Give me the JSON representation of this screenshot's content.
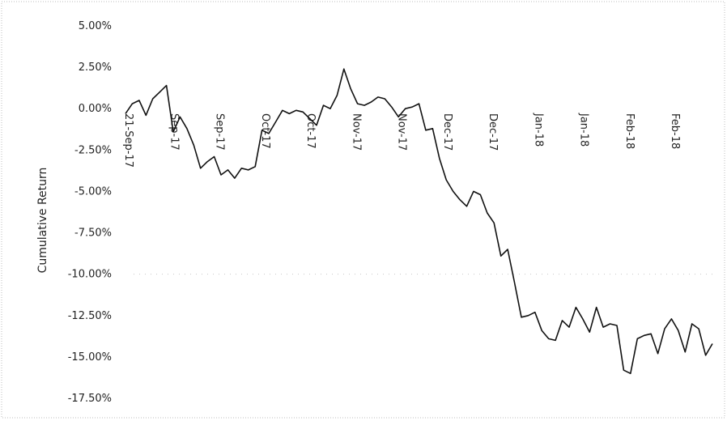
{
  "chart_data": {
    "type": "line",
    "title": "",
    "xlabel": "",
    "ylabel": "Cumulative Return",
    "ylim": [
      -17.5,
      5.0
    ],
    "y_ticks": [
      "5.00%",
      "2.50%",
      "0.00%",
      "-2.50%",
      "-5.00%",
      "-7.50%",
      "-10.00%",
      "-12.50%",
      "-15.00%",
      "-17.50%"
    ],
    "y_tick_values": [
      5.0,
      2.5,
      0.0,
      -2.5,
      -5.0,
      -7.5,
      -10.0,
      -12.5,
      -15.0,
      -17.5
    ],
    "x_tick_labels": [
      "21-Sep-17",
      "Sep-17",
      "Sep-17",
      "Oct-17",
      "Oct-17",
      "Nov-17",
      "Nov-17",
      "Dec-17",
      "Dec-17",
      "Jan-18",
      "Jan-18",
      "Feb-18",
      "Feb-18"
    ],
    "grid": "horizontal at -10.00%",
    "legend": "none",
    "series": [
      {
        "values": [
          -0.3,
          0.3,
          0.5,
          -0.4,
          0.6,
          1.0,
          1.4,
          -1.4,
          -0.5,
          -1.2,
          -2.2,
          -3.6,
          -3.2,
          -2.9,
          -4.0,
          -3.7,
          -4.2,
          -3.6,
          -3.7,
          -3.5,
          -1.3,
          -1.5,
          -0.8,
          -0.1,
          -0.3,
          -0.1,
          -0.2,
          -0.6,
          -1.0,
          0.2,
          0.0,
          0.8,
          2.4,
          1.2,
          0.3,
          0.2,
          0.4,
          0.7,
          0.6,
          0.1,
          -0.5,
          0.0,
          0.1,
          0.3,
          -1.3,
          -1.2,
          -3.0,
          -4.3,
          -5.0,
          -5.5,
          -5.9,
          -5.0,
          -5.2,
          -6.3,
          -6.9,
          -8.9,
          -8.5,
          -10.5,
          -12.6,
          -12.5,
          -12.3,
          -13.4,
          -13.9,
          -14.0,
          -12.8,
          -13.2,
          -12.0,
          -12.7,
          -13.5,
          -12.0,
          -13.2,
          -13.0,
          -13.1,
          -15.8,
          -16.0,
          -13.9,
          -13.7,
          -13.6,
          -14.8,
          -13.3,
          -12.7,
          -13.4,
          -14.7,
          -13.0,
          -13.3,
          -14.9,
          -14.2
        ]
      }
    ]
  }
}
